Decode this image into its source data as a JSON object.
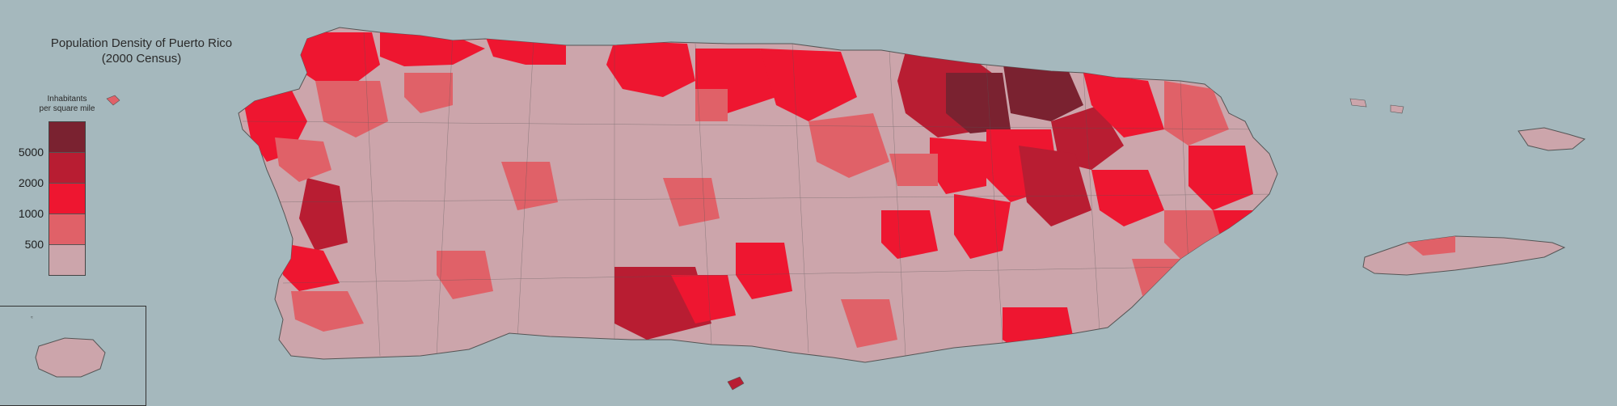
{
  "title_line1": "Population Density of Puerto Rico",
  "title_line2": "(2000 Census)",
  "legend": {
    "title_line1": "Inhabitants",
    "title_line2": "per square mile",
    "bins": [
      {
        "label": "",
        "color": "#7a2230"
      },
      {
        "label": "5000",
        "color": "#b81d32"
      },
      {
        "label": "2000",
        "color": "#ee1630"
      },
      {
        "label": "1000",
        "color": "#e06168"
      },
      {
        "label": "500",
        "color": "#cca5ab"
      }
    ]
  },
  "colors": {
    "ocean": "#a5b8bd",
    "lowest": "#cca5ab",
    "low": "#e06168",
    "mid": "#ee1630",
    "high": "#b81d32",
    "highest": "#7a2230",
    "border": "#555555"
  },
  "inset_label": "≈"
}
